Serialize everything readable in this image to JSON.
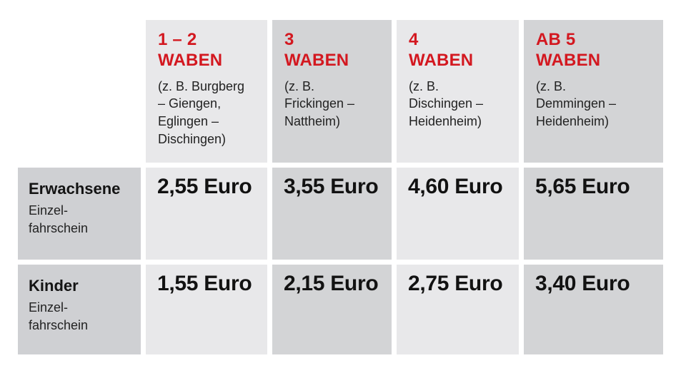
{
  "table": {
    "unit_word": "WABEN",
    "columns": [
      {
        "zone": "1 – 2",
        "unit": "WABEN",
        "example": "(z. B. Burgberg\n– Giengen,\nEglingen –\nDischingen)",
        "shade": "light"
      },
      {
        "zone": "3",
        "unit": "WABEN",
        "example": "(z. B.\nFrickingen –\nNattheim)",
        "shade": "dark"
      },
      {
        "zone": "4",
        "unit": "WABEN",
        "example": "(z. B.\nDischingen –\nHeidenheim)",
        "shade": "light"
      },
      {
        "zone": "AB 5",
        "unit": "WABEN",
        "example": "(z. B.\nDemmingen –\nHeidenheim)",
        "shade": "dark"
      }
    ],
    "rows": [
      {
        "label": "Erwachsene",
        "sublabel": "Einzel-\nfahrschein",
        "prices": [
          "2,55 Euro",
          "3,55 Euro",
          "4,60 Euro",
          "5,65 Euro"
        ]
      },
      {
        "label": "Kinder",
        "sublabel": "Einzel-\nfahrschein",
        "prices": [
          "1,55 Euro",
          "2,15 Euro",
          "2,75 Euro",
          "3,40 Euro"
        ]
      }
    ]
  },
  "colors": {
    "accent_red": "#d31820",
    "light_cell": "#e8e8ea",
    "dark_cell": "#d3d4d6",
    "label_cell": "#cfd0d3",
    "text": "#1a1a1a",
    "background": "#ffffff"
  }
}
